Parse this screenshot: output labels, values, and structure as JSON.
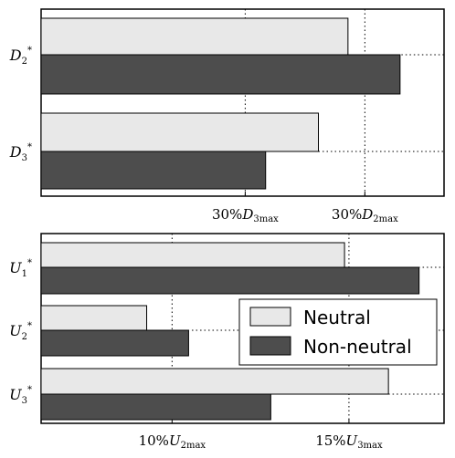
{
  "chart_data": [
    {
      "type": "bar",
      "orientation": "horizontal",
      "categories": [
        {
          "base": "D",
          "sub": "2",
          "sup": "*"
        },
        {
          "base": "D",
          "sub": "3",
          "sup": "*"
        }
      ],
      "series": [
        {
          "name": "Neutral",
          "color": "#e8e8e8",
          "values": [
            0.872,
            0.788
          ]
        },
        {
          "name": "Non-neutral",
          "color": "#4d4d4d",
          "values": [
            1.02,
            0.638
          ]
        }
      ],
      "xlim": [
        0,
        1.145
      ],
      "reference_lines": [
        {
          "pct": "30%",
          "symbol": "D",
          "sub": "3max",
          "value": 0.58
        },
        {
          "pct": "30%",
          "symbol": "D",
          "sub": "2max",
          "value": 0.92
        }
      ],
      "grid": "reference lines only"
    },
    {
      "type": "bar",
      "orientation": "horizontal",
      "categories": [
        {
          "base": "U",
          "sub": "1",
          "sup": "*"
        },
        {
          "base": "U",
          "sub": "2",
          "sup": "*"
        },
        {
          "base": "U",
          "sub": "3",
          "sup": "*"
        }
      ],
      "series": [
        {
          "name": "Neutral",
          "color": "#e8e8e8",
          "values": [
            0.753,
            0.262,
            0.862
          ]
        },
        {
          "name": "Non-neutral",
          "color": "#4d4d4d",
          "values": [
            0.938,
            0.366,
            0.57
          ]
        }
      ],
      "xlim": [
        0,
        1.0
      ],
      "reference_lines": [
        {
          "pct": "10%",
          "symbol": "U",
          "sub": "2max",
          "value": 0.325
        },
        {
          "pct": "15%",
          "symbol": "U",
          "sub": "3max",
          "value": 0.764
        }
      ],
      "grid": "reference lines only",
      "legend": {
        "placement": "center-right",
        "entries": [
          "Neutral",
          "Non-neutral"
        ]
      }
    }
  ]
}
